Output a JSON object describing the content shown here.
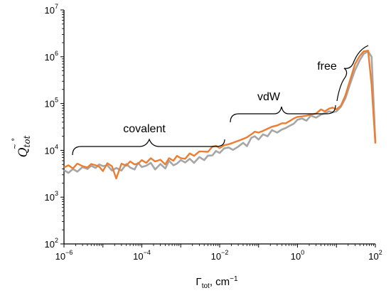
{
  "chart_data": {
    "type": "line",
    "x_scale": "log",
    "y_scale": "log",
    "xlim": [
      1e-06,
      100
    ],
    "ylim": [
      100,
      10000000
    ],
    "x_ticks": [
      {
        "base": "10",
        "exp": "−6"
      },
      {
        "base": "10",
        "exp": "−4"
      },
      {
        "base": "10",
        "exp": "−2"
      },
      {
        "base": "10",
        "exp": "0"
      },
      {
        "base": "10",
        "exp": "2"
      }
    ],
    "y_ticks": [
      {
        "base": "10",
        "exp": "2"
      },
      {
        "base": "10",
        "exp": "3"
      },
      {
        "base": "10",
        "exp": "4"
      },
      {
        "base": "10",
        "exp": "5"
      },
      {
        "base": "10",
        "exp": "6"
      },
      {
        "base": "10",
        "exp": "7"
      }
    ],
    "xlabel": {
      "main": "Γ",
      "sub": "tot",
      "rest": ", cm",
      "sup": "−1"
    },
    "ylabel": "Q̃°tot",
    "grid": false,
    "series": [
      {
        "color": "#a6a6a6",
        "x": [
          1e-06,
          1.3e-06,
          1.7e-06,
          2.2e-06,
          3e-06,
          4e-06,
          5e-06,
          6.5e-06,
          8e-06,
          1e-05,
          1.3e-05,
          1.7e-05,
          2.2e-05,
          3e-05,
          4e-05,
          5e-05,
          6.5e-05,
          8e-05,
          0.0001,
          0.00013,
          0.00017,
          0.00022,
          0.0003,
          0.0004,
          0.0005,
          0.00065,
          0.0008,
          0.001,
          0.0013,
          0.0017,
          0.0022,
          0.003,
          0.004,
          0.005,
          0.0065,
          0.008,
          0.01,
          0.013,
          0.017,
          0.022,
          0.03,
          0.04,
          0.05,
          0.065,
          0.08,
          0.1,
          0.13,
          0.17,
          0.22,
          0.3,
          0.4,
          0.5,
          0.65,
          0.8,
          1,
          1.3,
          1.7,
          2.2,
          3,
          4,
          5,
          6.5,
          8,
          10,
          13,
          17,
          22,
          30,
          40,
          50,
          65,
          80,
          100
        ],
        "y": [
          3800,
          3300,
          4000,
          3500,
          4400,
          4000,
          4700,
          4200,
          5000,
          4600,
          4800,
          3700,
          4200,
          3700,
          5100,
          4300,
          3900,
          5400,
          4400,
          4700,
          5400,
          3900,
          5100,
          4100,
          6000,
          4800,
          5200,
          6200,
          5500,
          6600,
          5400,
          7200,
          6200,
          7700,
          7800,
          9700,
          8800,
          11000,
          11500,
          10200,
          12000,
          14500,
          12300,
          18500,
          20000,
          17000,
          22000,
          20000,
          27000,
          24000,
          28000,
          30000,
          34000,
          37000,
          45000,
          48000,
          43000,
          55000,
          50000,
          58000,
          62000,
          68000,
          65000,
          68000,
          85000,
          130000,
          250000,
          520000,
          850000,
          1150000,
          1300000,
          1000000,
          15000
        ]
      },
      {
        "color": "#ed7d31",
        "x": [
          1e-06,
          1.3e-06,
          1.7e-06,
          2.2e-06,
          3e-06,
          4e-06,
          5e-06,
          6.5e-06,
          8e-06,
          1e-05,
          1.3e-05,
          1.7e-05,
          2.2e-05,
          3e-05,
          4e-05,
          5e-05,
          6.5e-05,
          8e-05,
          0.0001,
          0.00013,
          0.00017,
          0.00022,
          0.0003,
          0.0004,
          0.0005,
          0.00065,
          0.0008,
          0.001,
          0.0013,
          0.0017,
          0.0022,
          0.003,
          0.004,
          0.005,
          0.0065,
          0.008,
          0.01,
          0.013,
          0.017,
          0.022,
          0.03,
          0.04,
          0.05,
          0.065,
          0.08,
          0.1,
          0.13,
          0.17,
          0.22,
          0.3,
          0.4,
          0.5,
          0.65,
          0.8,
          1,
          1.3,
          1.7,
          2.2,
          3,
          4,
          5,
          6.5,
          8,
          10,
          13,
          17,
          22,
          30,
          40,
          50,
          65,
          80,
          100
        ],
        "y": [
          4300,
          4800,
          4100,
          5200,
          4600,
          4300,
          5100,
          4800,
          4500,
          3600,
          5300,
          4600,
          2500,
          5200,
          4700,
          5800,
          5000,
          5200,
          6200,
          5400,
          6800,
          5800,
          6300,
          5000,
          6800,
          6000,
          7600,
          6800,
          6600,
          8600,
          7600,
          9500,
          9400,
          9300,
          12000,
          12500,
          11200,
          12800,
          13500,
          14500,
          16000,
          17500,
          19000,
          22000,
          25000,
          24000,
          26000,
          29000,
          32000,
          34000,
          38000,
          38000,
          43000,
          48000,
          52000,
          53000,
          55000,
          58000,
          61000,
          75000,
          68000,
          78000,
          82000,
          75000,
          90000,
          150000,
          300000,
          700000,
          1050000,
          1300000,
          1350000,
          250000,
          14000
        ]
      }
    ],
    "annotations": [
      "covalent",
      "vdW",
      "free"
    ]
  }
}
